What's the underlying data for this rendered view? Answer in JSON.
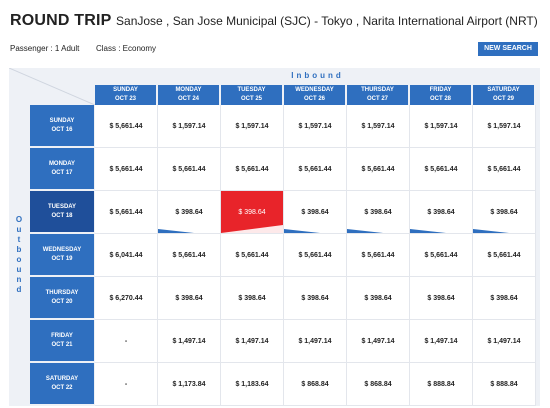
{
  "header": {
    "trip_type": "ROUND TRIP",
    "route": "SanJose , San Jose Municipal (SJC) - Tokyo , Narita International Airport (NRT)",
    "passenger": "Passenger : 1 Adult",
    "class": "Class : Economy",
    "new_search_label": "NEW SEARCH"
  },
  "grid": {
    "inbound_label": "Inbound",
    "outbound_label": [
      "O",
      "u",
      "t",
      "b",
      "o",
      "u",
      "n",
      "d"
    ],
    "columns": [
      {
        "day": "SUNDAY",
        "date": "OCT 23"
      },
      {
        "day": "MONDAY",
        "date": "OCT 24"
      },
      {
        "day": "TUESDAY",
        "date": "OCT 25"
      },
      {
        "day": "WEDNESDAY",
        "date": "OCT 26"
      },
      {
        "day": "THURSDAY",
        "date": "OCT 27"
      },
      {
        "day": "FRIDAY",
        "date": "OCT 28"
      },
      {
        "day": "SATURDAY",
        "date": "OCT 29"
      }
    ],
    "rows": [
      {
        "day": "SUNDAY",
        "date": "OCT 16",
        "prices": [
          "$ 5,661.44",
          "$ 1,597.14",
          "$ 1,597.14",
          "$ 1,597.14",
          "$ 1,597.14",
          "$ 1,597.14",
          "$ 1,597.14"
        ]
      },
      {
        "day": "MONDAY",
        "date": "OCT 17",
        "prices": [
          "$ 5,661.44",
          "$ 5,661.44",
          "$ 5,661.44",
          "$ 5,661.44",
          "$ 5,661.44",
          "$ 5,661.44",
          "$ 5,661.44"
        ]
      },
      {
        "day": "TUESDAY",
        "date": "OCT 18",
        "prices": [
          "$ 5,661.44",
          "$ 398.64",
          "$ 398.64",
          "$ 398.64",
          "$ 398.64",
          "$ 398.64",
          "$ 398.64"
        ]
      },
      {
        "day": "WEDNESDAY",
        "date": "OCT 19",
        "prices": [
          "$ 6,041.44",
          "$ 5,661.44",
          "$ 5,661.44",
          "$ 5,661.44",
          "$ 5,661.44",
          "$ 5,661.44",
          "$ 5,661.44"
        ]
      },
      {
        "day": "THURSDAY",
        "date": "OCT 20",
        "prices": [
          "$ 6,270.44",
          "$ 398.64",
          "$ 398.64",
          "$ 398.64",
          "$ 398.64",
          "$ 398.64",
          "$ 398.64"
        ]
      },
      {
        "day": "FRIDAY",
        "date": "OCT 21",
        "prices": [
          "-",
          "$ 1,497.14",
          "$ 1,497.14",
          "$ 1,497.14",
          "$ 1,497.14",
          "$ 1,497.14",
          "$ 1,497.14"
        ]
      },
      {
        "day": "SATURDAY",
        "date": "OCT 22",
        "prices": [
          "-",
          "$ 1,173.84",
          "$ 1,183.64",
          "$ 868.84",
          "$ 868.84",
          "$ 888.84",
          "$ 888.84"
        ]
      }
    ],
    "selected": {
      "row": 2,
      "col": 2
    },
    "markers": [
      [
        2,
        1
      ],
      [
        2,
        3
      ],
      [
        2,
        4
      ],
      [
        2,
        5
      ],
      [
        2,
        6
      ]
    ],
    "colors": {
      "header_blue": "#2f6fbf",
      "lowest_red": "#e8242a",
      "selected_row": "#1f4f9a"
    }
  }
}
